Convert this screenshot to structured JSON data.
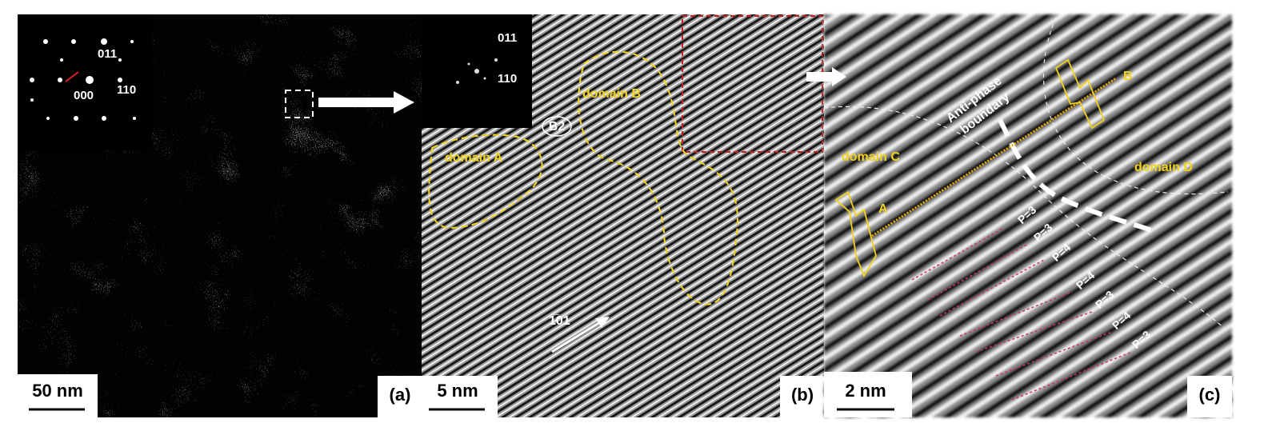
{
  "panels": [
    {
      "label": "(a)",
      "scale_bar": "50 nm",
      "inset_labels": [
        "011",
        "000",
        "110"
      ]
    },
    {
      "label": "(b)",
      "scale_bar": "5 nm",
      "inset_labels": [
        "011",
        "110"
      ],
      "annotations": [
        "B2",
        "domain A",
        "domain B",
        "1̅01"
      ]
    },
    {
      "label": "(c)",
      "scale_bar": "2 nm",
      "annotations": [
        "Anti-phase",
        "boundary",
        "B",
        "A",
        "domain C",
        "domain D"
      ],
      "periods": [
        "P=3",
        "P=3",
        "P=4",
        "P=4",
        "P=3",
        "P=4",
        "P=3"
      ]
    }
  ]
}
